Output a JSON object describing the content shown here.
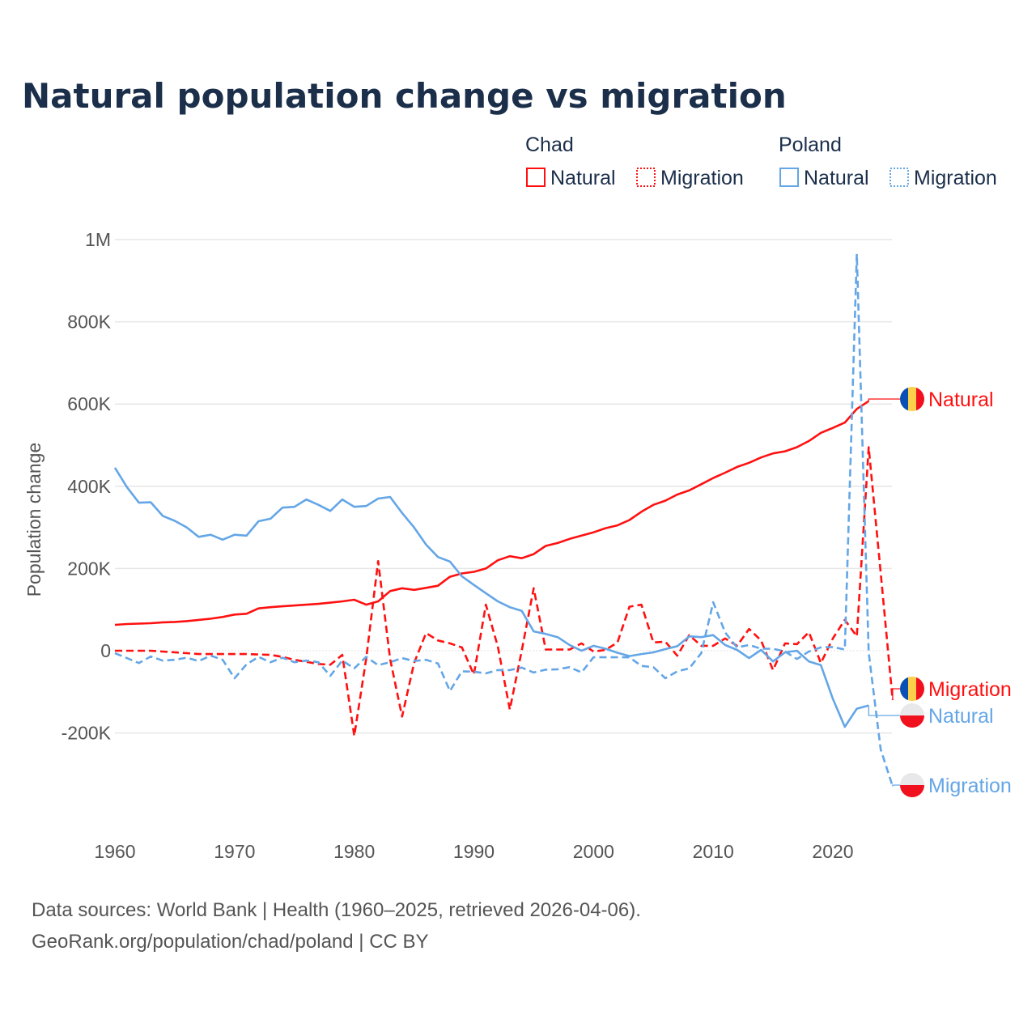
{
  "title": "Natural population change vs migration",
  "legend": {
    "groups": [
      {
        "name": "Chad",
        "items": [
          "Natural",
          "Migration"
        ]
      },
      {
        "name": "Poland",
        "items": [
          "Natural",
          "Migration"
        ]
      }
    ]
  },
  "footer": {
    "line1": "Data sources: World Bank | Health (1960–2025, retrieved 2026-04-06).",
    "line2": "GeoRank.org/population/chad/poland | CC BY"
  },
  "colors": {
    "chad": "#ff1010",
    "poland": "#64a6e6",
    "grid": "#e6e6e6"
  },
  "chart_data": {
    "type": "line",
    "title": "Natural population change vs migration",
    "xlabel": "",
    "ylabel": "Population change",
    "xlim": [
      1960,
      2025
    ],
    "ylim": [
      -350000,
      1000000
    ],
    "grid": true,
    "legend_position": "top-right",
    "x_ticks": [
      1960,
      1970,
      1980,
      1990,
      2000,
      2010,
      2020
    ],
    "x_tick_labels": [
      "1960",
      "1970",
      "1980",
      "1990",
      "2000",
      "2010",
      "2020"
    ],
    "y_ticks": [
      1000000,
      800000,
      600000,
      400000,
      200000,
      0,
      -200000
    ],
    "y_tick_labels": [
      "1M",
      "800K",
      "600K",
      "400K",
      "200K",
      "0",
      "-200K"
    ],
    "start_year": 1960,
    "series": [
      {
        "name": "Chad Natural",
        "country": "Chad",
        "kind": "Natural",
        "end_label": "Natural",
        "flag": "chad",
        "dashed": false,
        "values": [
          63000,
          65000,
          66000,
          67000,
          69000,
          70000,
          72000,
          75000,
          78000,
          82000,
          88000,
          90000,
          103000,
          106000,
          108000,
          110000,
          112000,
          114000,
          117000,
          120000,
          124000,
          112000,
          120000,
          145000,
          152000,
          148000,
          153000,
          158000,
          180000,
          188000,
          192000,
          200000,
          220000,
          230000,
          225000,
          235000,
          255000,
          262000,
          272000,
          280000,
          288000,
          298000,
          305000,
          318000,
          338000,
          355000,
          365000,
          380000,
          390000,
          405000,
          420000,
          433000,
          447000,
          457000,
          470000,
          480000,
          485000,
          495000,
          510000,
          530000,
          542000,
          555000,
          588000,
          607000
        ]
      },
      {
        "name": "Chad Migration",
        "country": "Chad",
        "kind": "Migration",
        "end_label": "Migration",
        "flag": "chad",
        "dashed": true,
        "values": [
          0,
          0,
          0,
          0,
          -2000,
          -4000,
          -6000,
          -8000,
          -8000,
          -8000,
          -8000,
          -8000,
          -9000,
          -10000,
          -15000,
          -22000,
          -27000,
          -32000,
          -34000,
          -10000,
          -207000,
          -20000,
          218000,
          -20000,
          -160000,
          -30000,
          43000,
          25000,
          18000,
          8000,
          -58000,
          112000,
          10000,
          -143000,
          0,
          152000,
          3000,
          3000,
          3000,
          18000,
          -2000,
          2000,
          20000,
          107000,
          112000,
          20000,
          22000,
          -12000,
          38000,
          12000,
          12000,
          30000,
          12000,
          53000,
          25000,
          -47000,
          18000,
          16000,
          45000,
          -30000,
          30000,
          75000,
          35000,
          495000,
          190000,
          -120000
        ]
      },
      {
        "name": "Poland Natural",
        "country": "Poland",
        "kind": "Natural",
        "end_label": "Natural",
        "flag": "poland",
        "dashed": false,
        "values": [
          445000,
          398000,
          360000,
          361000,
          328000,
          316000,
          300000,
          277000,
          282000,
          270000,
          282000,
          280000,
          315000,
          321000,
          348000,
          350000,
          368000,
          355000,
          340000,
          368000,
          350000,
          352000,
          370000,
          374000,
          335000,
          300000,
          258000,
          228000,
          217000,
          181000,
          160000,
          140000,
          120000,
          106000,
          97000,
          47000,
          41000,
          33000,
          14000,
          0,
          12000,
          5000,
          -5000,
          -13000,
          -8000,
          -4000,
          4000,
          11000,
          35000,
          33000,
          38000,
          14000,
          2000,
          -18000,
          2000,
          -26000,
          -4000,
          0,
          -26000,
          -35000,
          -117000,
          -185000,
          -141000,
          -133000
        ]
      },
      {
        "name": "Poland Migration",
        "country": "Poland",
        "kind": "Migration",
        "end_label": "Migration",
        "flag": "poland",
        "dashed": true,
        "values": [
          -6000,
          -18000,
          -30000,
          -14000,
          -24000,
          -22000,
          -17000,
          -25000,
          -12000,
          -22000,
          -67000,
          -33000,
          -15000,
          -28000,
          -17000,
          -28000,
          -24000,
          -28000,
          -61000,
          -24000,
          -43000,
          -15000,
          -35000,
          -28000,
          -18000,
          -25000,
          -22000,
          -31000,
          -98000,
          -50000,
          -51000,
          -55000,
          -47000,
          -47000,
          -41000,
          -53000,
          -46000,
          -45000,
          -40000,
          -53000,
          -16000,
          -16000,
          -16000,
          -16000,
          -37000,
          -40000,
          -67000,
          -50000,
          -43000,
          -6000,
          118000,
          44000,
          8000,
          14000,
          5000,
          5000,
          -2000,
          -20000,
          -2000,
          8000,
          9000,
          3000,
          965000,
          -5000,
          -240000,
          -330000
        ]
      }
    ]
  }
}
